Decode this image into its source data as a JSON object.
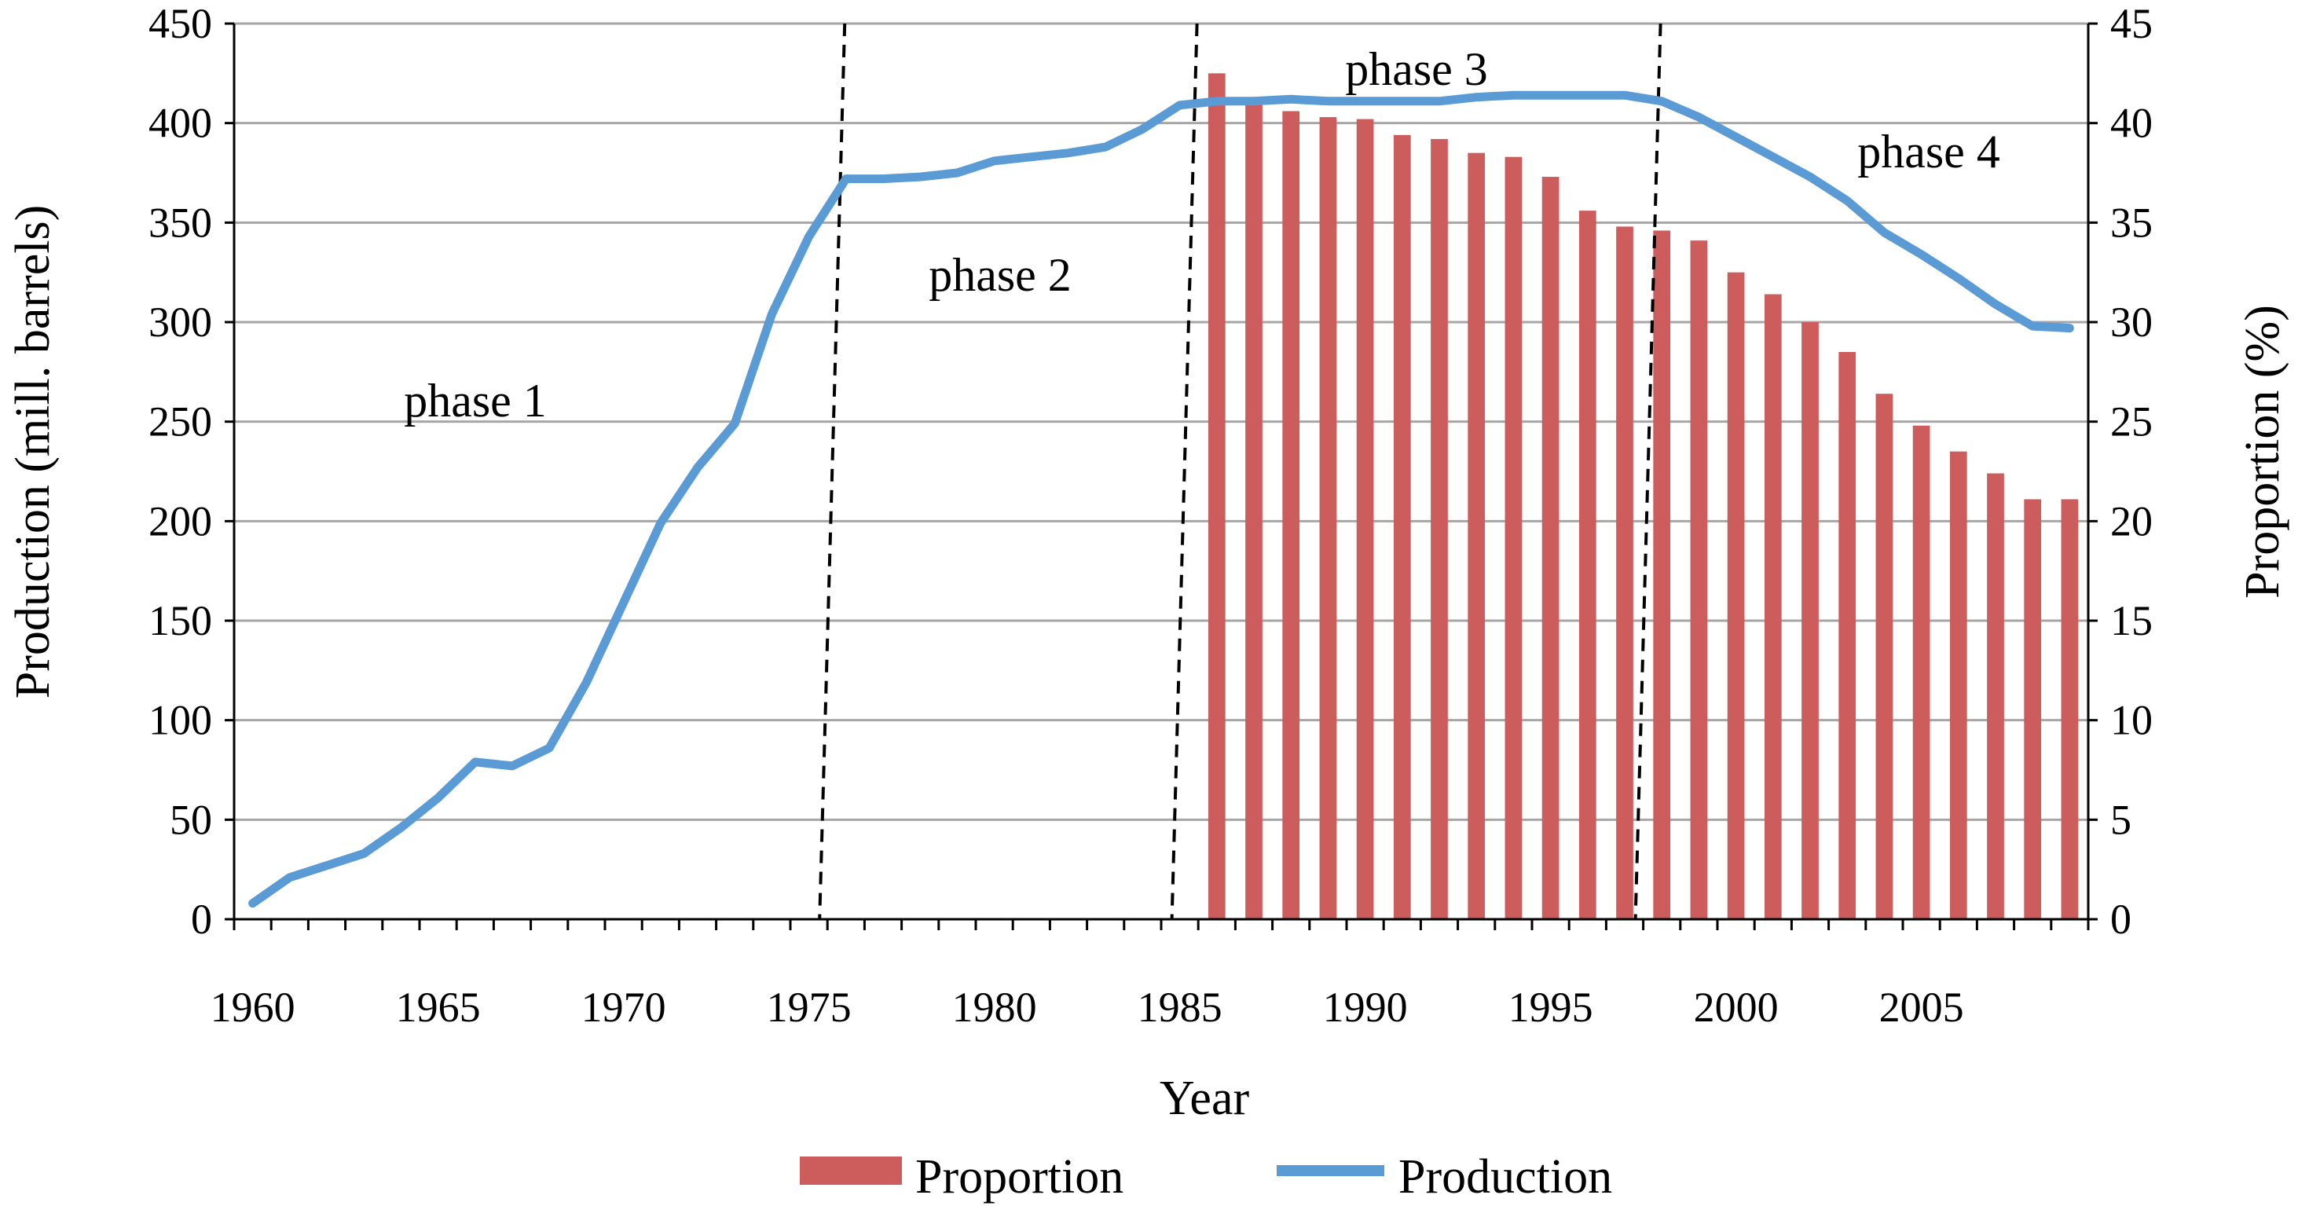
{
  "chart_data": {
    "type": "bar+line",
    "xlabel": "Year",
    "ylabel_left": "Production (mill. barrels)",
    "ylabel_right": "Proportion  (%)",
    "x_range": [
      1960,
      2009
    ],
    "x_ticks": [
      1960,
      1965,
      1970,
      1975,
      1980,
      1985,
      1990,
      1995,
      2000,
      2005
    ],
    "y_left_range": [
      0,
      450
    ],
    "y_left_ticks": [
      0,
      50,
      100,
      150,
      200,
      250,
      300,
      350,
      400,
      450
    ],
    "y_right_range": [
      0,
      45
    ],
    "y_right_ticks": [
      0,
      5,
      10,
      15,
      20,
      25,
      30,
      35,
      40,
      45
    ],
    "gridlines": true,
    "legend_position": "bottom",
    "series": [
      {
        "name": "Proportion",
        "kind": "bar",
        "axis": "right",
        "color": "#CD5C5C",
        "x": [
          1986,
          1987,
          1988,
          1989,
          1990,
          1991,
          1992,
          1993,
          1994,
          1995,
          1996,
          1997,
          1998,
          1999,
          2000,
          2001,
          2002,
          2003,
          2004,
          2005,
          2006,
          2007,
          2008,
          2009
        ],
        "values": [
          42.5,
          41.3,
          40.6,
          40.3,
          40.2,
          39.4,
          39.2,
          38.5,
          38.3,
          37.3,
          35.6,
          34.8,
          34.6,
          34.1,
          32.5,
          31.4,
          30.0,
          28.5,
          26.4,
          24.8,
          23.5,
          22.4,
          21.1,
          21.1
        ]
      },
      {
        "name": "Production",
        "kind": "line",
        "axis": "left",
        "color": "#5B9BD5",
        "x": [
          1960,
          1961,
          1962,
          1963,
          1964,
          1965,
          1966,
          1967,
          1968,
          1969,
          1970,
          1971,
          1972,
          1973,
          1974,
          1975,
          1976,
          1977,
          1978,
          1979,
          1980,
          1981,
          1982,
          1983,
          1984,
          1985,
          1986,
          1987,
          1988,
          1989,
          1990,
          1991,
          1992,
          1993,
          1994,
          1995,
          1996,
          1997,
          1998,
          1999,
          2000,
          2001,
          2002,
          2003,
          2004,
          2005,
          2006,
          2007,
          2008,
          2009
        ],
        "values": [
          8,
          21,
          27,
          33,
          46,
          61,
          79,
          77,
          86,
          119,
          159,
          199,
          227,
          249,
          304,
          343,
          372,
          372,
          373,
          375,
          381,
          383,
          385,
          388,
          397,
          409,
          411,
          411,
          412,
          411,
          411,
          411,
          411,
          413,
          414,
          414,
          414,
          414,
          411,
          403,
          393,
          383,
          373,
          361,
          345,
          334,
          322,
          309,
          298,
          297
        ]
      }
    ],
    "phase_dividers": [
      1975.5,
      1985,
      1997.5
    ],
    "annotations": [
      "phase 1",
      "phase 2",
      "phase 3",
      "phase 4"
    ]
  }
}
